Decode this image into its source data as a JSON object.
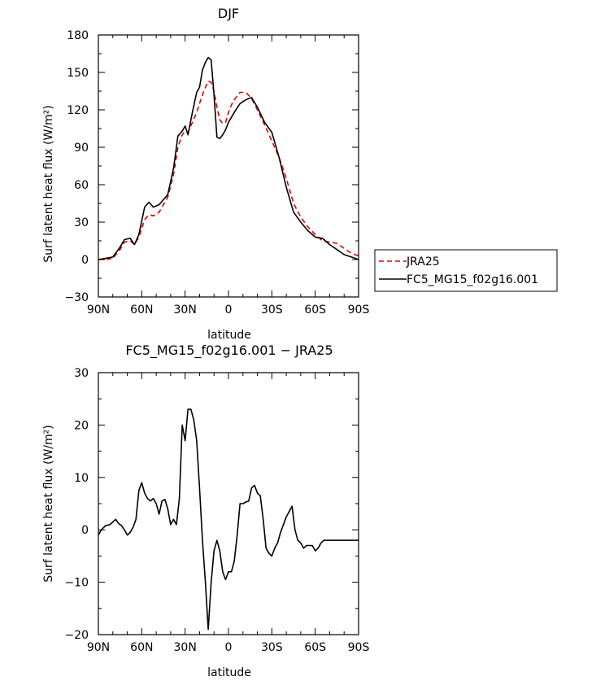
{
  "chart_data": [
    {
      "type": "line",
      "title": "DJF",
      "xlabel": "latitude",
      "ylabel": "Surf latent heat flux (W/m²)",
      "xlim": [
        90,
        -90
      ],
      "ylim": [
        -30,
        180
      ],
      "xticks": [
        {
          "value": 90,
          "label": "90N"
        },
        {
          "value": 60,
          "label": "60N"
        },
        {
          "value": 30,
          "label": "30N"
        },
        {
          "value": 0,
          "label": "0"
        },
        {
          "value": -30,
          "label": "30S"
        },
        {
          "value": -60,
          "label": "60S"
        },
        {
          "value": -90,
          "label": "90S"
        }
      ],
      "yticks": [
        -30,
        0,
        30,
        60,
        90,
        120,
        150,
        180
      ],
      "legend": {
        "placement": "right"
      },
      "series": [
        {
          "name": "JRA25",
          "color": "#e00000",
          "dash": "dashed",
          "x": [
            90,
            85,
            80,
            75,
            72,
            68,
            65,
            62,
            58,
            55,
            52,
            48,
            45,
            42,
            38,
            35,
            32,
            30,
            28,
            25,
            22,
            20,
            18,
            16,
            14,
            12,
            10,
            8,
            6,
            4,
            2,
            0,
            -2,
            -4,
            -8,
            -12,
            -16,
            -20,
            -25,
            -30,
            -35,
            -40,
            -45,
            -50,
            -55,
            -60,
            -65,
            -70,
            -75,
            -80,
            -85,
            -90
          ],
          "y": [
            0,
            0,
            1,
            8,
            14,
            15,
            12,
            18,
            32,
            36,
            35,
            38,
            44,
            50,
            68,
            90,
            100,
            103,
            102,
            110,
            118,
            125,
            132,
            138,
            143,
            142,
            135,
            122,
            112,
            109,
            110,
            118,
            124,
            128,
            134,
            134,
            129,
            120,
            108,
            95,
            82,
            65,
            45,
            34,
            26,
            20,
            15,
            14,
            13,
            9,
            5,
            3
          ]
        },
        {
          "name": "FC5_MG15_f02g16.001",
          "color": "#000000",
          "dash": "solid",
          "x": [
            90,
            85,
            80,
            75,
            72,
            68,
            65,
            62,
            58,
            55,
            52,
            48,
            45,
            42,
            38,
            35,
            32,
            30,
            28,
            25,
            22,
            20,
            18,
            16,
            14,
            12,
            10,
            8,
            6,
            4,
            2,
            0,
            -2,
            -4,
            -8,
            -12,
            -16,
            -20,
            -25,
            -30,
            -35,
            -40,
            -45,
            -50,
            -55,
            -60,
            -65,
            -70,
            -75,
            -80,
            -85,
            -90
          ],
          "y": [
            0,
            1,
            2,
            10,
            16,
            17,
            12,
            20,
            42,
            46,
            42,
            44,
            48,
            52,
            73,
            99,
            103,
            107,
            100,
            118,
            134,
            138,
            152,
            158,
            162,
            160,
            132,
            98,
            97,
            100,
            104,
            110,
            114,
            118,
            125,
            128,
            130,
            122,
            110,
            102,
            82,
            58,
            38,
            30,
            23,
            18,
            17,
            12,
            8,
            4,
            2,
            0
          ]
        }
      ]
    },
    {
      "type": "line",
      "title": "FC5_MG15_f02g16.001 − JRA25",
      "xlabel": "latitude",
      "ylabel": "Surf latent heat flux (W/m²)",
      "xlim": [
        90,
        -90
      ],
      "ylim": [
        -20,
        30
      ],
      "xticks": [
        {
          "value": 90,
          "label": "90N"
        },
        {
          "value": 60,
          "label": "60N"
        },
        {
          "value": 30,
          "label": "30N"
        },
        {
          "value": 0,
          "label": "0"
        },
        {
          "value": -30,
          "label": "30S"
        },
        {
          "value": -60,
          "label": "60S"
        },
        {
          "value": -90,
          "label": "90S"
        }
      ],
      "yticks": [
        -20,
        -10,
        0,
        10,
        20,
        30
      ],
      "series": [
        {
          "name": "",
          "color": "#000000",
          "dash": "solid",
          "x": [
            90,
            88,
            85,
            82,
            80,
            78,
            76,
            74,
            72,
            70,
            68,
            66,
            64,
            62,
            60,
            58,
            56,
            54,
            52,
            50,
            48,
            46,
            44,
            42,
            40,
            38,
            36,
            34,
            32,
            30,
            28,
            26,
            24,
            22,
            20,
            18,
            16,
            14,
            12,
            10,
            8,
            6,
            4,
            2,
            0,
            -2,
            -4,
            -6,
            -8,
            -10,
            -12,
            -14,
            -16,
            -18,
            -20,
            -22,
            -24,
            -26,
            -28,
            -30,
            -32,
            -34,
            -36,
            -38,
            -40,
            -42,
            -44,
            -46,
            -48,
            -50,
            -52,
            -54,
            -56,
            -58,
            -60,
            -62,
            -64,
            -66,
            -68,
            -70,
            -72,
            -74,
            -76,
            -78,
            -80,
            -82,
            -84,
            -86,
            -88,
            -90
          ],
          "y": [
            -1,
            0,
            0.8,
            1,
            1.5,
            2,
            1.2,
            0.8,
            0,
            -1,
            -0.5,
            0.5,
            2,
            7.5,
            9,
            7,
            6,
            5.5,
            6,
            5,
            3,
            5.5,
            5.8,
            4,
            1,
            2,
            1,
            6,
            20,
            17,
            23,
            23,
            21,
            17,
            8,
            -2,
            -10,
            -19,
            -10,
            -4,
            -2,
            -4,
            -8,
            -9.5,
            -8,
            -8,
            -6,
            -1,
            5,
            5,
            5.3,
            5.5,
            8,
            8.5,
            7,
            6.5,
            2,
            -3.5,
            -4.5,
            -5,
            -3.5,
            -2.5,
            -0.5,
            1,
            2.5,
            3.5,
            4.5,
            0,
            -2,
            -2.5,
            -3.5,
            -3,
            -3,
            -3,
            -4,
            -3.5,
            -2.5,
            -2,
            -2,
            -2,
            -2,
            -2,
            -2,
            -2,
            -2,
            -2,
            -2,
            -2,
            -2,
            -2
          ]
        }
      ]
    }
  ]
}
